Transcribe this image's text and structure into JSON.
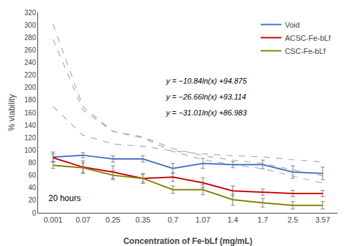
{
  "chart_data": {
    "type": "line",
    "categories": [
      "0.001",
      "0.07",
      "0.25",
      "0.35",
      "0.7",
      "1.07",
      "1.4",
      "1.7",
      "2.5",
      "3.57"
    ],
    "series": [
      {
        "color": "darkgray",
        "line_style": "dashed",
        "values": [
          169.755,
          123.701,
          109.902,
          106.255,
          98.741,
          94.142,
          91.228,
          89.123,
          84.942,
          81.08
        ]
      },
      {
        "color": "darkgray",
        "line_style": "dashed",
        "values": [
          277.275,
          164.01,
          130.073,
          121.102,
          102.623,
          91.31,
          84.144,
          78.967,
          68.686,
          59.187
        ]
      },
      {
        "color": "darkgray",
        "line_style": "dashed",
        "values": [
          301.192,
          169.447,
          129.972,
          119.538,
          98.043,
          84.885,
          76.549,
          70.528,
          58.569,
          47.521
        ]
      },
      {
        "name": "Void",
        "color": "#4472C4",
        "line_style": "solid",
        "values": [
          89,
          92,
          86,
          86,
          71,
          79,
          77,
          77,
          65,
          63
        ],
        "errors": [
          8,
          4,
          5,
          5,
          8,
          8,
          5,
          7,
          10,
          10
        ]
      },
      {
        "name": "ACSC-Fe-bLf",
        "color": "#CC0000",
        "line_style": "solid",
        "values": [
          88,
          73,
          65,
          55,
          57,
          48,
          35,
          33,
          31,
          31
        ],
        "errors": [
          6,
          10,
          10,
          8,
          7,
          8,
          8,
          5,
          5,
          5
        ]
      },
      {
        "name": "CSC-Fe-bLf",
        "color": "#808000",
        "line_style": "solid",
        "values": [
          76,
          72,
          60,
          55,
          37,
          37,
          21,
          16,
          12,
          12
        ],
        "errors": [
          5,
          8,
          7,
          6,
          6,
          8,
          9,
          7,
          6,
          6
        ]
      }
    ],
    "xlabel": "Concentration of Fe-bLf (mg/mL)",
    "ylabel": "% viability",
    "ylim": [
      0,
      320
    ],
    "yticks": [
      0,
      20,
      40,
      60,
      80,
      100,
      120,
      140,
      160,
      180,
      200,
      220,
      240,
      260,
      280,
      300,
      320
    ],
    "annotations": [
      "20 hours",
      "y = −10.84ln(x) +94.875",
      "y = −26.66ln(x) +93.114",
      "y = −31.01ln(x) +86.983"
    ],
    "legend": "upper right",
    "grid": false
  }
}
